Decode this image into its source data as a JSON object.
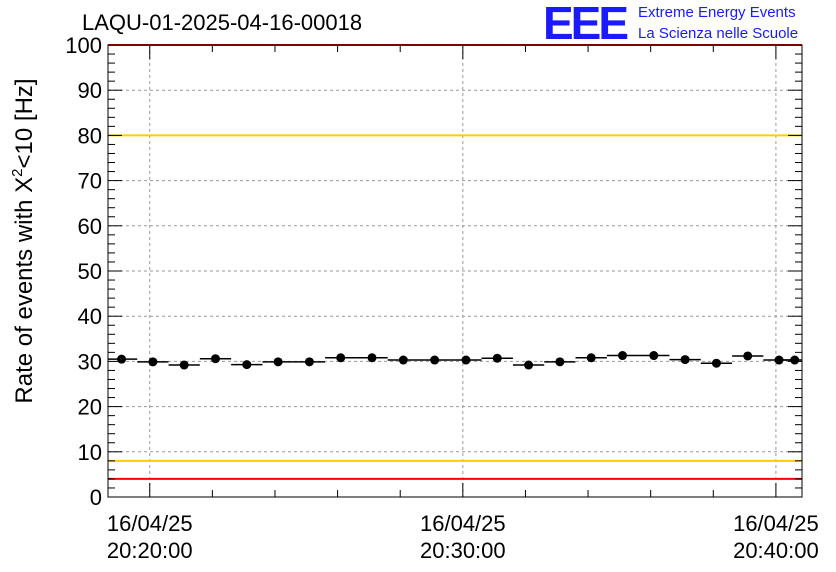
{
  "title": "LAQU-01-2025-04-16-00018",
  "logo": {
    "mark": "EEE",
    "line1": "Extreme Energy Events",
    "line2": "La Scienza nelle Scuole",
    "color": "#1a1aff"
  },
  "chart_data": {
    "type": "scatter",
    "title": "LAQU-01-2025-04-16-00018",
    "ylabel_prefix": "Rate of events with X",
    "ylabel_sup": "2",
    "ylabel_suffix": "<10 [Hz]",
    "xlabel": "",
    "ylim": [
      0,
      100
    ],
    "yticks": [
      "0",
      "10",
      "20",
      "30",
      "40",
      "50",
      "60",
      "70",
      "80",
      "90",
      "100"
    ],
    "x_axis": "time",
    "xlim": [
      "20:18:40",
      "20:40:50"
    ],
    "xticks": [
      {
        "t": "20:20:00",
        "date": "16/04/25",
        "time": "20:20:00"
      },
      {
        "t": "20:30:00",
        "date": "16/04/25",
        "time": "20:30:00"
      },
      {
        "t": "20:40:00",
        "date": "16/04/25",
        "time": "20:40:00"
      }
    ],
    "bin_width_s": 60,
    "grid": true,
    "series": [
      {
        "marker": "circle",
        "color": "#000000",
        "x": [
          "20:19:06",
          "20:20:06",
          "20:21:06",
          "20:22:06",
          "20:23:06",
          "20:24:06",
          "20:25:06",
          "20:26:06",
          "20:27:06",
          "20:28:06",
          "20:29:06",
          "20:30:06",
          "20:31:06",
          "20:32:06",
          "20:33:06",
          "20:34:06",
          "20:35:06",
          "20:36:06",
          "20:37:06",
          "20:38:06",
          "20:39:06",
          "20:40:06",
          "20:40:36"
        ],
        "values": [
          30.5,
          29.9,
          29.2,
          30.6,
          29.3,
          29.9,
          29.9,
          30.8,
          30.8,
          30.3,
          30.3,
          30.3,
          30.7,
          29.2,
          29.9,
          30.8,
          31.3,
          31.3,
          30.4,
          29.6,
          31.2,
          30.3,
          30.3
        ]
      }
    ],
    "reference_lines": [
      {
        "y": 100,
        "color": "#ff0000"
      },
      {
        "y": 80,
        "color": "#ffcc00"
      },
      {
        "y": 8,
        "color": "#ffcc00"
      },
      {
        "y": 4,
        "color": "#ff0000"
      }
    ]
  }
}
